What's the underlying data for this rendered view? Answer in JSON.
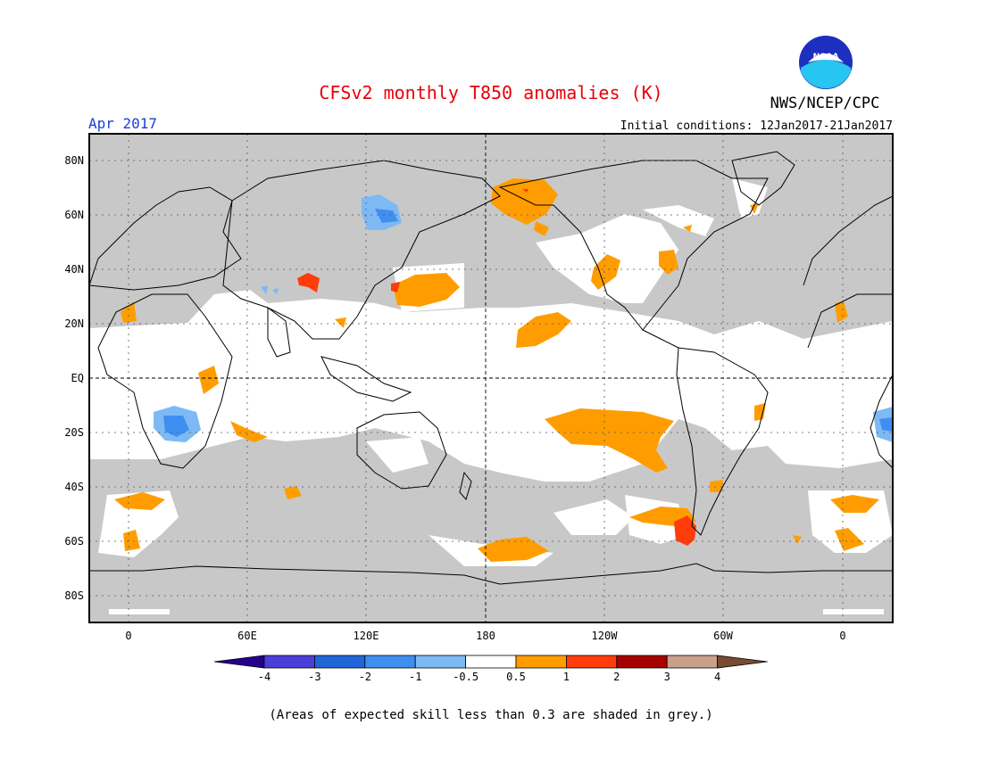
{
  "header": {
    "title": "CFSv2 monthly T850 anomalies (K)",
    "month": "Apr 2017",
    "agency": "NWS/NCEP/CPC",
    "initial_conditions": "Initial conditions: 12Jan2017-21Jan2017",
    "logo_text": "NOAA"
  },
  "axes": {
    "lat_labels": [
      "80N",
      "60N",
      "40N",
      "20N",
      "EQ",
      "20S",
      "40S",
      "60S",
      "80S"
    ],
    "lon_labels": [
      "0",
      "60E",
      "120E",
      "180",
      "120W",
      "60W",
      "0"
    ]
  },
  "colorbar": {
    "labels": [
      "-4",
      "-3",
      "-2",
      "-1",
      "-0.5",
      "0.5",
      "1",
      "2",
      "3",
      "4"
    ],
    "colors": [
      "#24008c",
      "#4a3fd6",
      "#1f66d9",
      "#3f8ff0",
      "#7dbaf5",
      "#ffffff",
      "#ff9d00",
      "#ff3d0a",
      "#a70000",
      "#c8a08c",
      "#7a4a32"
    ]
  },
  "footnote": "(Areas of expected skill less than 0.3 are shaded in grey.)",
  "colors": {
    "title": "#e8000b",
    "month": "#1a3fd6",
    "grey_low_skill": "#c8c8c8",
    "orange_anomaly": "#ff9d00",
    "red_anomaly": "#ff3d0a",
    "blue_anomaly": "#4a9ae8"
  }
}
